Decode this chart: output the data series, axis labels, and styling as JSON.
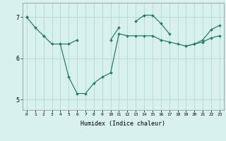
{
  "xlabel": "Humidex (Indice chaleur)",
  "x_values": [
    0,
    1,
    2,
    3,
    4,
    5,
    6,
    7,
    8,
    9,
    10,
    11,
    12,
    13,
    14,
    15,
    16,
    17,
    18,
    19,
    20,
    21,
    22,
    23
  ],
  "line_low": [
    7.0,
    6.75,
    6.55,
    6.35,
    6.35,
    5.55,
    5.15,
    5.15,
    5.4,
    5.55,
    5.65,
    6.6,
    6.55,
    6.55,
    6.55,
    6.55,
    6.45,
    6.4,
    6.35,
    6.3,
    6.35,
    6.4,
    6.5,
    6.55
  ],
  "line_high_segments": [
    {
      "x": [
        0
      ],
      "y": [
        7.0
      ]
    },
    {
      "x": [
        2
      ],
      "y": [
        6.55
      ]
    },
    {
      "x": [
        4,
        5,
        6
      ],
      "y": [
        6.35,
        6.35,
        6.45
      ]
    },
    {
      "x": [
        10,
        11
      ],
      "y": [
        6.45,
        6.75
      ]
    },
    {
      "x": [
        13,
        14,
        15,
        16,
        17
      ],
      "y": [
        6.9,
        7.05,
        7.05,
        6.85,
        6.6
      ]
    },
    {
      "x": [
        19,
        20,
        21,
        22,
        23
      ],
      "y": [
        6.3,
        6.35,
        6.45,
        6.7,
        6.8
      ]
    }
  ],
  "color": "#2d7d6e",
  "bg_color": "#d8f0ee",
  "grid_color": "#b8ddd8",
  "ylim": [
    4.75,
    7.35
  ],
  "yticks": [
    5,
    6,
    7
  ],
  "xlim": [
    -0.5,
    23.5
  ]
}
